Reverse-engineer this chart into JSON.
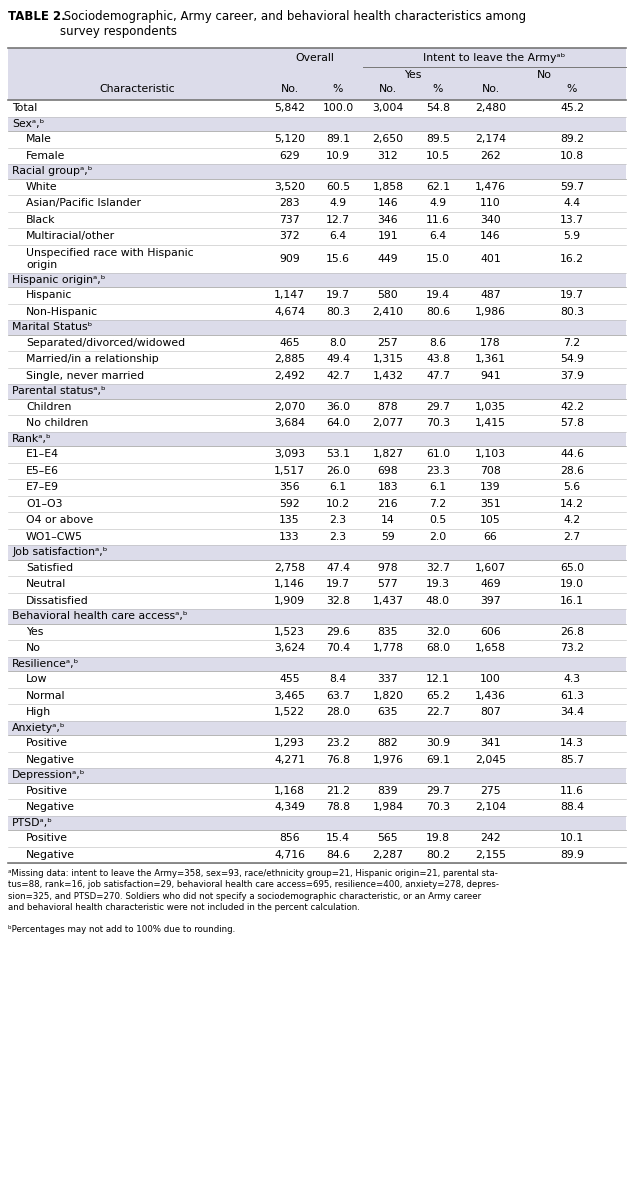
{
  "title_bold": "TABLE 2.",
  "title_rest": " Sociodemographic, Army career, and behavioral health characteristics among\nsurvey respondents",
  "rows": [
    {
      "label": "Total",
      "indent": 0,
      "is_section": false,
      "data": [
        "5,842",
        "100.0",
        "3,004",
        "54.8",
        "2,480",
        "45.2"
      ]
    },
    {
      "label": "Sexᵃ,ᵇ",
      "indent": 0,
      "is_section": true,
      "data": [
        "",
        "",
        "",
        "",
        "",
        ""
      ]
    },
    {
      "label": "Male",
      "indent": 1,
      "is_section": false,
      "data": [
        "5,120",
        "89.1",
        "2,650",
        "89.5",
        "2,174",
        "89.2"
      ]
    },
    {
      "label": "Female",
      "indent": 1,
      "is_section": false,
      "data": [
        "629",
        "10.9",
        "312",
        "10.5",
        "262",
        "10.8"
      ]
    },
    {
      "label": "Racial groupᵃ,ᵇ",
      "indent": 0,
      "is_section": true,
      "data": [
        "",
        "",
        "",
        "",
        "",
        ""
      ]
    },
    {
      "label": "White",
      "indent": 1,
      "is_section": false,
      "data": [
        "3,520",
        "60.5",
        "1,858",
        "62.1",
        "1,476",
        "59.7"
      ]
    },
    {
      "label": "Asian/Pacific Islander",
      "indent": 1,
      "is_section": false,
      "data": [
        "283",
        "4.9",
        "146",
        "4.9",
        "110",
        "4.4"
      ]
    },
    {
      "label": "Black",
      "indent": 1,
      "is_section": false,
      "data": [
        "737",
        "12.7",
        "346",
        "11.6",
        "340",
        "13.7"
      ]
    },
    {
      "label": "Multiracial/other",
      "indent": 1,
      "is_section": false,
      "data": [
        "372",
        "6.4",
        "191",
        "6.4",
        "146",
        "5.9"
      ]
    },
    {
      "label": "Unspecified race with Hispanic\norigin",
      "indent": 1,
      "is_section": false,
      "is_tall": true,
      "data": [
        "909",
        "15.6",
        "449",
        "15.0",
        "401",
        "16.2"
      ]
    },
    {
      "label": "Hispanic originᵃ,ᵇ",
      "indent": 0,
      "is_section": true,
      "data": [
        "",
        "",
        "",
        "",
        "",
        ""
      ]
    },
    {
      "label": "Hispanic",
      "indent": 1,
      "is_section": false,
      "data": [
        "1,147",
        "19.7",
        "580",
        "19.4",
        "487",
        "19.7"
      ]
    },
    {
      "label": "Non-Hispanic",
      "indent": 1,
      "is_section": false,
      "data": [
        "4,674",
        "80.3",
        "2,410",
        "80.6",
        "1,986",
        "80.3"
      ]
    },
    {
      "label": "Marital Statusᵇ",
      "indent": 0,
      "is_section": true,
      "data": [
        "",
        "",
        "",
        "",
        "",
        ""
      ]
    },
    {
      "label": "Separated/divorced/widowed",
      "indent": 1,
      "is_section": false,
      "data": [
        "465",
        "8.0",
        "257",
        "8.6",
        "178",
        "7.2"
      ]
    },
    {
      "label": "Married/in a relationship",
      "indent": 1,
      "is_section": false,
      "data": [
        "2,885",
        "49.4",
        "1,315",
        "43.8",
        "1,361",
        "54.9"
      ]
    },
    {
      "label": "Single, never married",
      "indent": 1,
      "is_section": false,
      "data": [
        "2,492",
        "42.7",
        "1,432",
        "47.7",
        "941",
        "37.9"
      ]
    },
    {
      "label": "Parental statusᵃ,ᵇ",
      "indent": 0,
      "is_section": true,
      "data": [
        "",
        "",
        "",
        "",
        "",
        ""
      ]
    },
    {
      "label": "Children",
      "indent": 1,
      "is_section": false,
      "data": [
        "2,070",
        "36.0",
        "878",
        "29.7",
        "1,035",
        "42.2"
      ]
    },
    {
      "label": "No children",
      "indent": 1,
      "is_section": false,
      "data": [
        "3,684",
        "64.0",
        "2,077",
        "70.3",
        "1,415",
        "57.8"
      ]
    },
    {
      "label": "Rankᵃ,ᵇ",
      "indent": 0,
      "is_section": true,
      "data": [
        "",
        "",
        "",
        "",
        "",
        ""
      ]
    },
    {
      "label": "E1–E4",
      "indent": 1,
      "is_section": false,
      "data": [
        "3,093",
        "53.1",
        "1,827",
        "61.0",
        "1,103",
        "44.6"
      ]
    },
    {
      "label": "E5–E6",
      "indent": 1,
      "is_section": false,
      "data": [
        "1,517",
        "26.0",
        "698",
        "23.3",
        "708",
        "28.6"
      ]
    },
    {
      "label": "E7–E9",
      "indent": 1,
      "is_section": false,
      "data": [
        "356",
        "6.1",
        "183",
        "6.1",
        "139",
        "5.6"
      ]
    },
    {
      "label": "O1–O3",
      "indent": 1,
      "is_section": false,
      "data": [
        "592",
        "10.2",
        "216",
        "7.2",
        "351",
        "14.2"
      ]
    },
    {
      "label": "O4 or above",
      "indent": 1,
      "is_section": false,
      "data": [
        "135",
        "2.3",
        "14",
        "0.5",
        "105",
        "4.2"
      ]
    },
    {
      "label": "WO1–CW5",
      "indent": 1,
      "is_section": false,
      "data": [
        "133",
        "2.3",
        "59",
        "2.0",
        "66",
        "2.7"
      ]
    },
    {
      "label": "Job satisfactionᵃ,ᵇ",
      "indent": 0,
      "is_section": true,
      "data": [
        "",
        "",
        "",
        "",
        "",
        ""
      ]
    },
    {
      "label": "Satisfied",
      "indent": 1,
      "is_section": false,
      "data": [
        "2,758",
        "47.4",
        "978",
        "32.7",
        "1,607",
        "65.0"
      ]
    },
    {
      "label": "Neutral",
      "indent": 1,
      "is_section": false,
      "data": [
        "1,146",
        "19.7",
        "577",
        "19.3",
        "469",
        "19.0"
      ]
    },
    {
      "label": "Dissatisfied",
      "indent": 1,
      "is_section": false,
      "data": [
        "1,909",
        "32.8",
        "1,437",
        "48.0",
        "397",
        "16.1"
      ]
    },
    {
      "label": "Behavioral health care accessᵃ,ᵇ",
      "indent": 0,
      "is_section": true,
      "data": [
        "",
        "",
        "",
        "",
        "",
        ""
      ]
    },
    {
      "label": "Yes",
      "indent": 1,
      "is_section": false,
      "data": [
        "1,523",
        "29.6",
        "835",
        "32.0",
        "606",
        "26.8"
      ]
    },
    {
      "label": "No",
      "indent": 1,
      "is_section": false,
      "data": [
        "3,624",
        "70.4",
        "1,778",
        "68.0",
        "1,658",
        "73.2"
      ]
    },
    {
      "label": "Resilienceᵃ,ᵇ",
      "indent": 0,
      "is_section": true,
      "data": [
        "",
        "",
        "",
        "",
        "",
        ""
      ]
    },
    {
      "label": "Low",
      "indent": 1,
      "is_section": false,
      "data": [
        "455",
        "8.4",
        "337",
        "12.1",
        "100",
        "4.3"
      ]
    },
    {
      "label": "Normal",
      "indent": 1,
      "is_section": false,
      "data": [
        "3,465",
        "63.7",
        "1,820",
        "65.2",
        "1,436",
        "61.3"
      ]
    },
    {
      "label": "High",
      "indent": 1,
      "is_section": false,
      "data": [
        "1,522",
        "28.0",
        "635",
        "22.7",
        "807",
        "34.4"
      ]
    },
    {
      "label": "Anxietyᵃ,ᵇ",
      "indent": 0,
      "is_section": true,
      "data": [
        "",
        "",
        "",
        "",
        "",
        ""
      ]
    },
    {
      "label": "Positive",
      "indent": 1,
      "is_section": false,
      "data": [
        "1,293",
        "23.2",
        "882",
        "30.9",
        "341",
        "14.3"
      ]
    },
    {
      "label": "Negative",
      "indent": 1,
      "is_section": false,
      "data": [
        "4,271",
        "76.8",
        "1,976",
        "69.1",
        "2,045",
        "85.7"
      ]
    },
    {
      "label": "Depressionᵃ,ᵇ",
      "indent": 0,
      "is_section": true,
      "data": [
        "",
        "",
        "",
        "",
        "",
        ""
      ]
    },
    {
      "label": "Positive",
      "indent": 1,
      "is_section": false,
      "data": [
        "1,168",
        "21.2",
        "839",
        "29.7",
        "275",
        "11.6"
      ]
    },
    {
      "label": "Negative",
      "indent": 1,
      "is_section": false,
      "data": [
        "4,349",
        "78.8",
        "1,984",
        "70.3",
        "2,104",
        "88.4"
      ]
    },
    {
      "label": "PTSDᵃ,ᵇ",
      "indent": 0,
      "is_section": true,
      "data": [
        "",
        "",
        "",
        "",
        "",
        ""
      ]
    },
    {
      "label": "Positive",
      "indent": 1,
      "is_section": false,
      "data": [
        "856",
        "15.4",
        "565",
        "19.8",
        "242",
        "10.1"
      ]
    },
    {
      "label": "Negative",
      "indent": 1,
      "is_section": false,
      "data": [
        "4,716",
        "84.6",
        "2,287",
        "80.2",
        "2,155",
        "89.9"
      ]
    }
  ],
  "footnote1": "ᵃMissing data: intent to leave the Army=358, sex=93, race/ethnicity group=21, Hispanic origin=21, parental sta-\ntus=88, rank=16, job satisfaction=29, behavioral health care access=695, resilience=400, anxiety=278, depres-\nsion=325, and PTSD=270. Soldiers who did not specify a sociodemographic characteristic, or an Army career\nand behavioral health characteristic were not included in the percent calculation.",
  "footnote2": "ᵇPercentages may not add to 100% due to rounding.",
  "bg_color_header": "#dcdcea",
  "bg_color_section": "#dcdcea",
  "bg_color_white": "#ffffff"
}
